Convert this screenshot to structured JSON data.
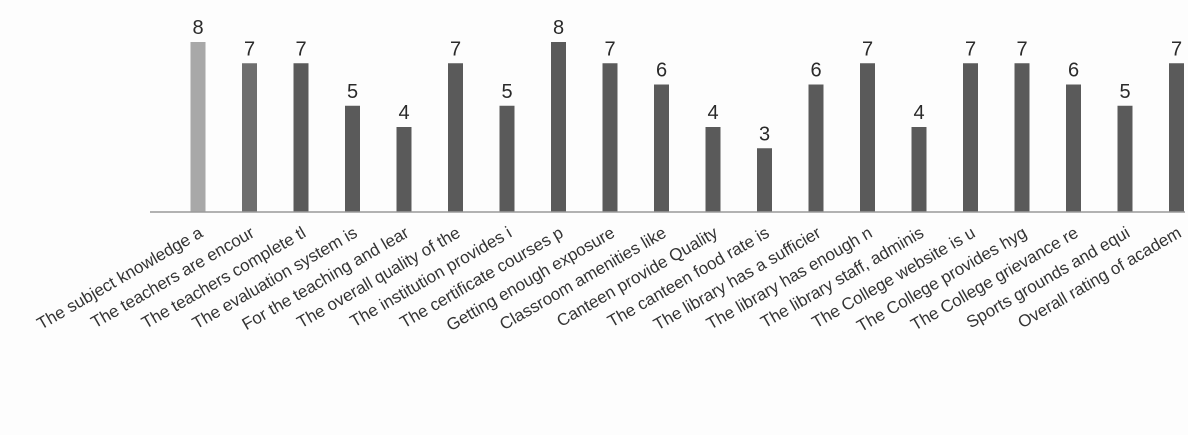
{
  "chart_data": {
    "type": "bar",
    "categories": [
      "The subject knowledge a",
      "The teachers are encour",
      "The teachers complete tl",
      "The evaluation system is",
      "For the teaching and lear",
      "The overall quality of the",
      "The institution provides i",
      "The certificate courses p",
      "Getting enough exposure",
      "Classroom amenities like",
      "Canteen provide Quality",
      "The canteen food rate is",
      "The library has a sufficier",
      "The library has enough n",
      "The library staff, adminis",
      "The College website is u",
      "The College provides hyg",
      "The College grievance re",
      "Sports grounds and equi",
      "Overall rating of academ"
    ],
    "values": [
      8,
      7,
      7,
      5,
      4,
      7,
      5,
      8,
      7,
      6,
      4,
      3,
      6,
      7,
      4,
      7,
      7,
      6,
      5,
      7
    ],
    "title": "",
    "xlabel": "",
    "ylabel": "",
    "ylim": [
      0,
      8
    ],
    "grid": false,
    "legend": "none",
    "colors": {
      "bar": "#5a5a5a",
      "bar_first": "#a8a8a8",
      "bar_second": "#6e6e6e",
      "axis": "#9a9a9a",
      "text": "#2a2a2a"
    }
  }
}
